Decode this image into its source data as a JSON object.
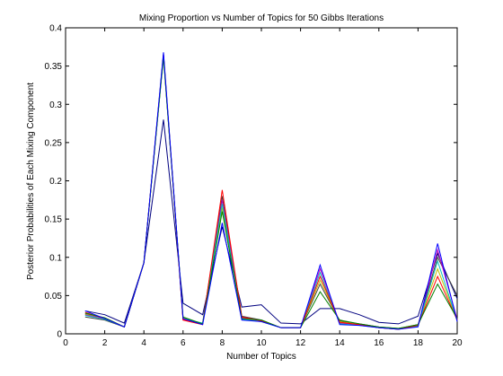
{
  "chart_data": {
    "type": "line",
    "title": "Mixing Proportion vs Number of Topics for 50 Gibbs Iterations",
    "xlabel": "Number of Topics",
    "ylabel": "Posterior Probabilities of Each Mixing Component",
    "xlim": [
      0,
      20
    ],
    "ylim": [
      0,
      0.4
    ],
    "x_ticks": [
      0,
      2,
      4,
      6,
      8,
      10,
      12,
      14,
      16,
      18,
      20
    ],
    "y_ticks": [
      0,
      0.05,
      0.1,
      0.15,
      0.2,
      0.25,
      0.3,
      0.35,
      0.4
    ],
    "y_tick_labels": [
      "0",
      "0.05",
      "0.1",
      "0.15",
      "0.2",
      "0.25",
      "0.3",
      "0.35",
      "0.4"
    ],
    "grid": false,
    "legend": "none",
    "x": [
      1,
      2,
      3,
      4,
      5,
      6,
      7,
      8,
      9,
      10,
      11,
      12,
      13,
      14,
      15,
      16,
      17,
      18,
      19,
      20
    ],
    "series": [
      {
        "color": "#0000ff",
        "values": [
          0.03,
          0.02,
          0.009,
          0.093,
          0.368,
          0.02,
          0.012,
          0.145,
          0.018,
          0.016,
          0.008,
          0.008,
          0.09,
          0.012,
          0.011,
          0.008,
          0.006,
          0.009,
          0.118,
          0.016
        ]
      },
      {
        "color": "#008000",
        "values": [
          0.027,
          0.021,
          0.009,
          0.093,
          0.362,
          0.022,
          0.013,
          0.16,
          0.02,
          0.018,
          0.008,
          0.008,
          0.055,
          0.018,
          0.013,
          0.009,
          0.007,
          0.012,
          0.065,
          0.02
        ]
      },
      {
        "color": "#ff0000",
        "values": [
          0.028,
          0.02,
          0.009,
          0.093,
          0.365,
          0.018,
          0.012,
          0.188,
          0.022,
          0.017,
          0.008,
          0.008,
          0.075,
          0.015,
          0.012,
          0.008,
          0.006,
          0.011,
          0.075,
          0.018
        ]
      },
      {
        "color": "#00bfbf",
        "values": [
          0.024,
          0.019,
          0.009,
          0.093,
          0.362,
          0.02,
          0.014,
          0.17,
          0.019,
          0.016,
          0.008,
          0.008,
          0.08,
          0.013,
          0.011,
          0.008,
          0.006,
          0.01,
          0.095,
          0.017
        ]
      },
      {
        "color": "#bf00bf",
        "values": [
          0.025,
          0.02,
          0.009,
          0.093,
          0.364,
          0.019,
          0.013,
          0.175,
          0.021,
          0.017,
          0.008,
          0.008,
          0.085,
          0.014,
          0.012,
          0.008,
          0.006,
          0.01,
          0.11,
          0.019
        ]
      },
      {
        "color": "#bfbf00",
        "values": [
          0.026,
          0.021,
          0.009,
          0.093,
          0.363,
          0.021,
          0.013,
          0.165,
          0.02,
          0.016,
          0.008,
          0.008,
          0.07,
          0.016,
          0.012,
          0.008,
          0.006,
          0.011,
          0.085,
          0.018
        ]
      },
      {
        "color": "#404040",
        "values": [
          0.022,
          0.018,
          0.009,
          0.093,
          0.366,
          0.019,
          0.014,
          0.18,
          0.023,
          0.018,
          0.008,
          0.008,
          0.065,
          0.017,
          0.013,
          0.009,
          0.007,
          0.012,
          0.1,
          0.05
        ]
      },
      {
        "color": "#00007f",
        "values": [
          0.03,
          0.025,
          0.014,
          0.093,
          0.28,
          0.04,
          0.025,
          0.14,
          0.035,
          0.038,
          0.014,
          0.013,
          0.033,
          0.033,
          0.025,
          0.015,
          0.013,
          0.023,
          0.105,
          0.046
        ]
      }
    ]
  }
}
